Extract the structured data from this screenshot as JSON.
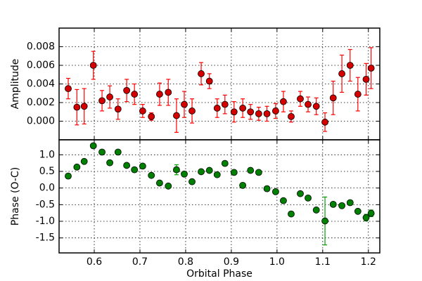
{
  "chart_data": [
    {
      "type": "scatter",
      "ylabel": "Amplitude",
      "color": "#d40000",
      "error_color": "#ff0000",
      "grid": true,
      "xlim": [
        0.523,
        1.225
      ],
      "ylim": [
        -0.002,
        0.01
      ],
      "xticks": [
        0.6,
        0.7,
        0.8,
        0.9,
        {
          "value": 1.0,
          "label": "1.0"
        },
        1.1,
        1.2
      ],
      "yticks": [
        {
          "value": 0,
          "label": "0.000"
        },
        {
          "value": 0.002,
          "label": "0.002"
        },
        {
          "value": 0.004,
          "label": "0.004"
        },
        {
          "value": 0.006,
          "label": "0.006"
        },
        {
          "value": 0.008,
          "label": "0.008"
        }
      ],
      "x": [
        0.543,
        0.562,
        0.578,
        0.598,
        0.617,
        0.634,
        0.652,
        0.671,
        0.688,
        0.706,
        0.725,
        0.743,
        0.762,
        0.78,
        0.797,
        0.814,
        0.834,
        0.852,
        0.869,
        0.886,
        0.906,
        0.925,
        0.942,
        0.96,
        0.978,
        0.997,
        1.014,
        1.031,
        1.051,
        1.068,
        1.086,
        1.105,
        1.123,
        1.142,
        1.16,
        1.177,
        1.195,
        1.206
      ],
      "values": [
        0.0035,
        0.0015,
        0.0016,
        0.006,
        0.0022,
        0.0026,
        0.0013,
        0.0033,
        0.0029,
        0.0011,
        0.0005,
        0.0029,
        0.0031,
        0.0006,
        0.0018,
        0.0011,
        0.0051,
        0.0043,
        0.0014,
        0.0018,
        0.001,
        0.0014,
        0.001,
        0.0008,
        0.0008,
        0.0011,
        0.0021,
        0.0005,
        0.0024,
        0.0018,
        0.0016,
        -0.0001,
        0.0025,
        0.0051,
        0.006,
        0.0029,
        0.0045,
        0.0057
      ],
      "errors": [
        0.0011,
        0.0019,
        0.0019,
        0.0015,
        0.0011,
        0.0012,
        0.0011,
        0.0012,
        0.0011,
        0.0007,
        0.0004,
        0.0012,
        0.0014,
        0.0018,
        0.0014,
        0.0013,
        0.0012,
        0.0008,
        0.001,
        0.001,
        0.0011,
        0.001,
        0.0008,
        0.0007,
        0.0008,
        0.0008,
        0.0011,
        0.0006,
        0.0008,
        0.0008,
        0.0009,
        0.001,
        0.0018,
        0.002,
        0.0017,
        0.0018,
        0.0017,
        0.0022
      ]
    },
    {
      "type": "scatter",
      "ylabel": "Phase (O-C)",
      "xlabel": "Orbital Phase",
      "color": "#008000",
      "error_color": "#00a000",
      "grid": true,
      "xlim": [
        0.523,
        1.225
      ],
      "ylim": [
        -1.95,
        1.45
      ],
      "xticks": [
        0.6,
        0.7,
        0.8,
        0.9,
        {
          "value": 1.0,
          "label": "1.0"
        },
        1.1,
        1.2
      ],
      "yticks": [
        {
          "value": 1,
          "label": "1.0"
        },
        0.5,
        {
          "value": 0,
          "label": "0.0"
        },
        -0.5,
        {
          "value": -1,
          "label": "-1.0"
        },
        -1.5
      ],
      "x": [
        0.543,
        0.562,
        0.578,
        0.598,
        0.617,
        0.634,
        0.652,
        0.671,
        0.688,
        0.706,
        0.725,
        0.743,
        0.762,
        0.78,
        0.797,
        0.814,
        0.834,
        0.852,
        0.869,
        0.886,
        0.906,
        0.925,
        0.942,
        0.96,
        0.978,
        0.997,
        1.014,
        1.031,
        1.051,
        1.068,
        1.086,
        1.105,
        1.123,
        1.142,
        1.16,
        1.177,
        1.195,
        1.206
      ],
      "values": [
        0.36,
        0.63,
        0.8,
        1.27,
        1.08,
        0.76,
        1.08,
        0.68,
        0.55,
        0.66,
        0.38,
        0.15,
        0.06,
        0.55,
        0.42,
        0.19,
        0.49,
        0.53,
        0.4,
        0.74,
        0.47,
        0.08,
        0.53,
        0.47,
        -0.02,
        -0.11,
        -0.38,
        -0.78,
        -0.17,
        -0.3,
        -0.66,
        -0.99,
        -0.49,
        -0.53,
        -0.44,
        -0.7,
        -0.89,
        -0.76
      ],
      "errors": [
        0.05,
        0.05,
        0.05,
        0.05,
        0.05,
        0.05,
        0.05,
        0.05,
        0.05,
        0.05,
        0.05,
        0.05,
        0.05,
        0.15,
        0.05,
        0.05,
        0.05,
        0.05,
        0.05,
        0.05,
        0.05,
        0.05,
        0.05,
        0.05,
        0.05,
        0.05,
        0.05,
        0.05,
        0.05,
        0.05,
        0.05,
        0.72,
        0.05,
        0.05,
        0.05,
        0.05,
        0.1,
        0.1
      ]
    }
  ]
}
